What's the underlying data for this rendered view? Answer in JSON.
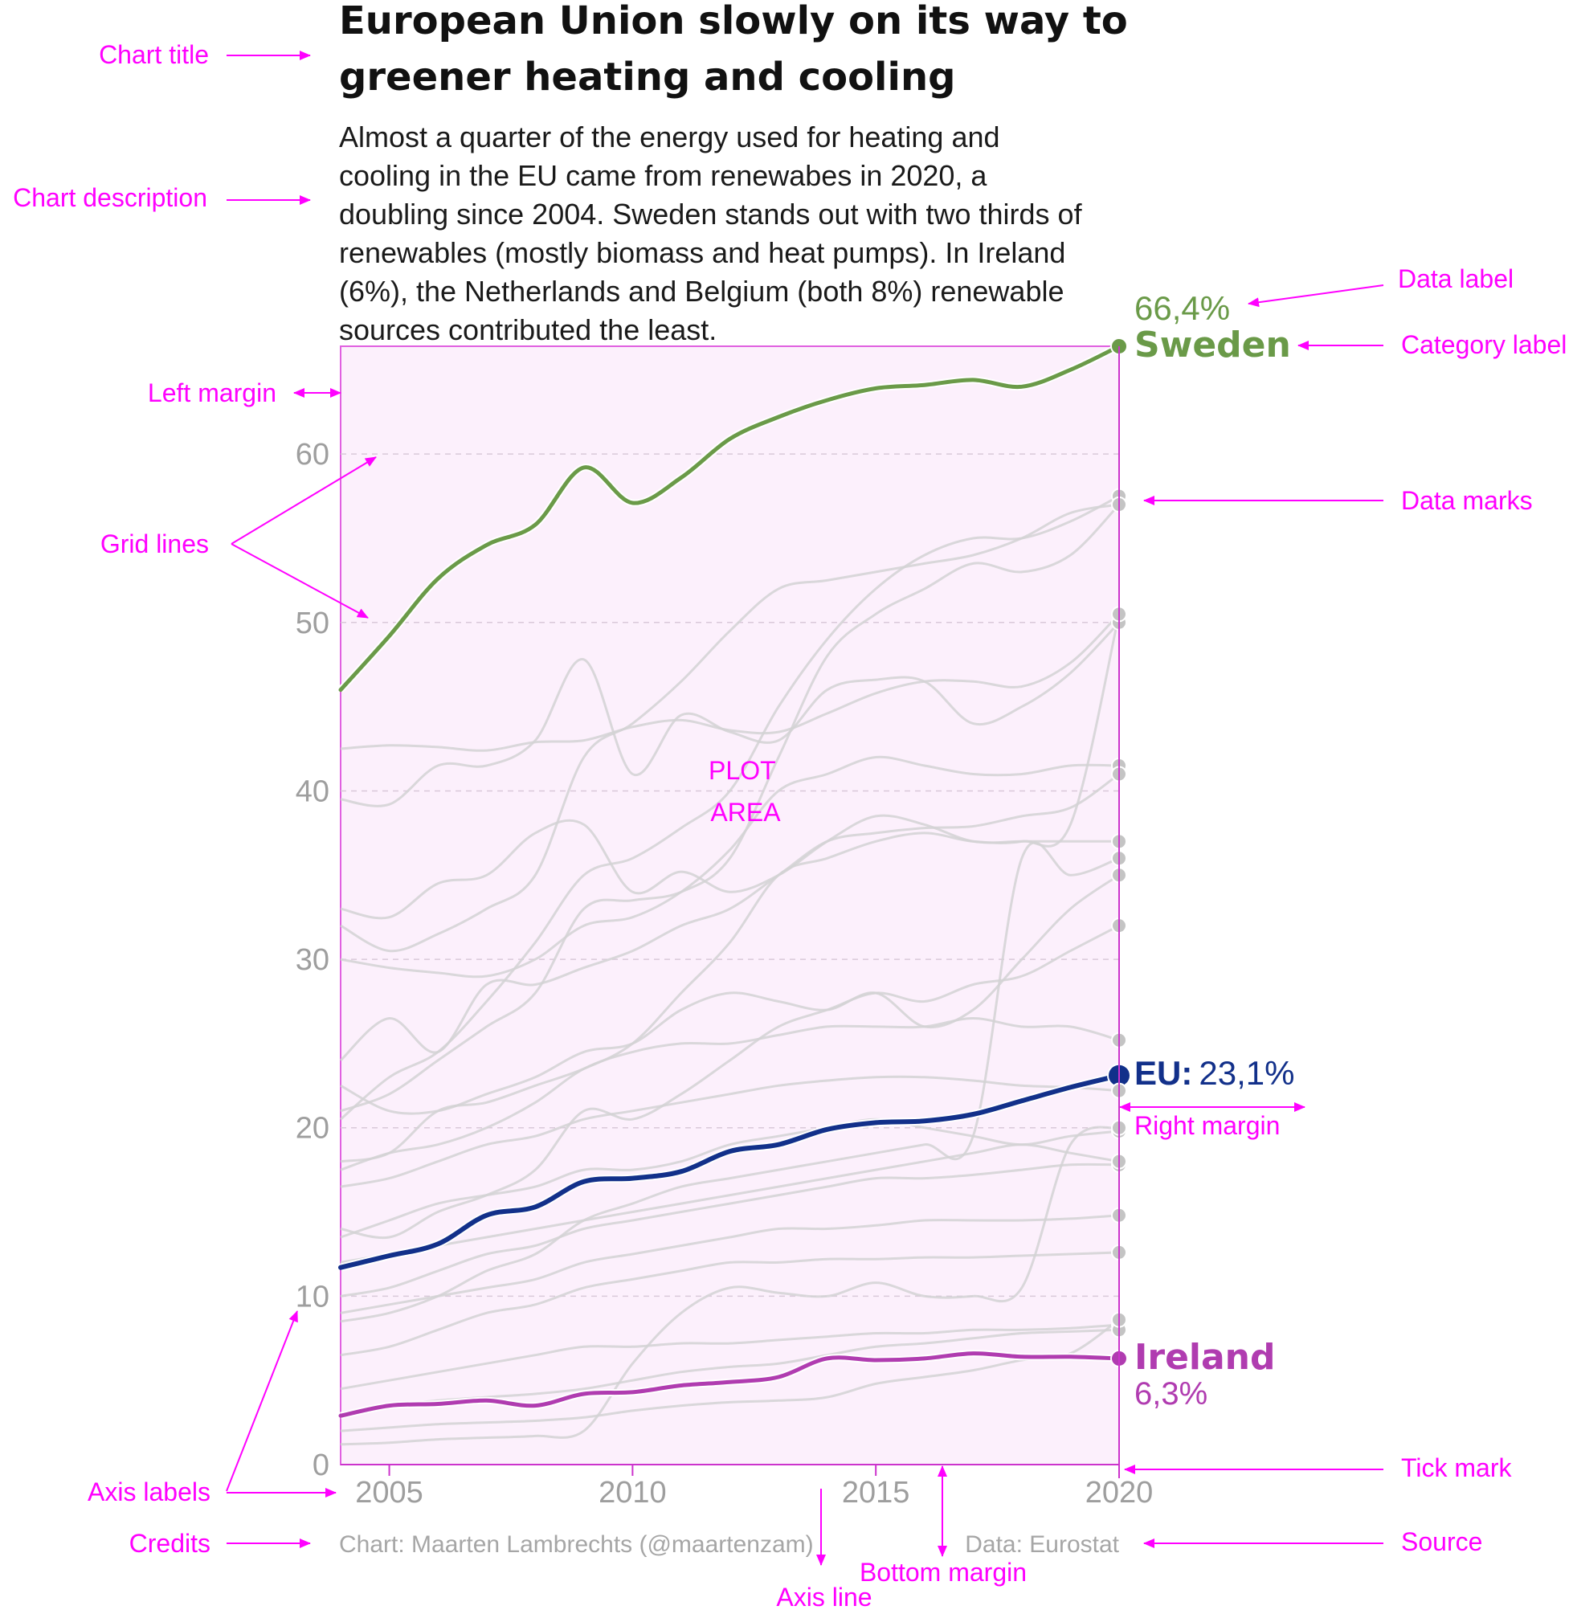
{
  "title_lines": [
    "European Union slowly on its way to",
    "greener heating and cooling"
  ],
  "description_lines": [
    "Almost a quarter of the energy used for heating and",
    "cooling in the EU came from renewabes in 2020, a",
    "doubling since 2004. Sweden stands out with two thirds of",
    "renewables (mostly biomass and heat pumps). In Ireland",
    "(6%), the Netherlands and Belgium (both 8%) renewable",
    "sources contributed the least."
  ],
  "credits": "Chart: Maarten Lambrechts (@maartenzam)",
  "source": "Data: Eurostat",
  "plot_area_label": [
    "PLOT",
    "AREA"
  ],
  "annotations": {
    "chart_title": "Chart title",
    "chart_description": "Chart description",
    "left_margin": "Left margin",
    "grid_lines": "Grid lines",
    "axis_labels": "Axis labels",
    "credits": "Credits",
    "axis_line": "Axis line",
    "bottom_margin": "Bottom margin",
    "source": "Source",
    "tick_mark": "Tick mark",
    "right_margin": "Right margin",
    "data_marks": "Data marks",
    "category_label": "Category label",
    "data_label": "Data label"
  },
  "colors": {
    "sweden": "#6a9a48",
    "eu": "#12308a",
    "ireland": "#b03cb0",
    "other_countries": "#d2d2d4",
    "annotation": "#ff00ff",
    "plot_area_bg": "#fcf0fc"
  },
  "chart_data": {
    "type": "line",
    "title": "European Union slowly on its way to greener heating and cooling",
    "xlim": [
      2004,
      2020
    ],
    "ylim": [
      0,
      66.4
    ],
    "x_ticks": [
      2005,
      2010,
      2015,
      2020
    ],
    "y_ticks": [
      0,
      10,
      20,
      30,
      40,
      50,
      60
    ],
    "grid": "horizontal dashed",
    "x": [
      2004,
      2005,
      2006,
      2007,
      2008,
      2009,
      2010,
      2011,
      2012,
      2013,
      2014,
      2015,
      2016,
      2017,
      2018,
      2019,
      2020
    ],
    "series": [
      {
        "name": "Sweden",
        "highlight": true,
        "end_label": "66,4%",
        "values": [
          46.0,
          49.2,
          52.6,
          54.6,
          55.8,
          59.2,
          57.1,
          58.6,
          60.9,
          62.2,
          63.2,
          63.9,
          64.1,
          64.4,
          64.0,
          65.0,
          66.4
        ]
      },
      {
        "name": "EU",
        "highlight": true,
        "end_label": "23,1%",
        "values": [
          11.7,
          12.4,
          13.1,
          14.8,
          15.3,
          16.8,
          17.0,
          17.4,
          18.6,
          19.0,
          19.9,
          20.3,
          20.4,
          20.8,
          21.6,
          22.4,
          23.1
        ]
      },
      {
        "name": "Ireland",
        "highlight": true,
        "end_label": "6,3%",
        "values": [
          2.9,
          3.5,
          3.6,
          3.8,
          3.5,
          4.2,
          4.3,
          4.7,
          4.9,
          5.2,
          6.3,
          6.2,
          6.3,
          6.6,
          6.4,
          6.4,
          6.3
        ]
      },
      {
        "values": [
          42.5,
          42.7,
          42.6,
          42.4,
          42.9,
          43.0,
          43.8,
          44.2,
          43.6,
          43.5,
          44.6,
          45.8,
          46.5,
          46.5,
          46.2,
          47.6,
          50.5
        ]
      },
      {
        "values": [
          39.5,
          39.2,
          41.5,
          41.5,
          43.0,
          47.8,
          41.0,
          44.5,
          43.5,
          43.0,
          46.0,
          46.6,
          46.5,
          44.0,
          45.0,
          47.0,
          50.0
        ]
      },
      {
        "values": [
          33.0,
          32.5,
          34.5,
          35.0,
          37.5,
          38.0,
          34.0,
          35.2,
          34.0,
          35.0,
          37.0,
          38.5,
          38.0,
          37.0,
          37.0,
          37.0,
          37.0
        ]
      },
      {
        "values": [
          30.0,
          29.5,
          29.2,
          29.0,
          30.0,
          32.0,
          32.5,
          34.0,
          36.5,
          40.0,
          41.0,
          42.0,
          41.5,
          41.0,
          41.0,
          41.5,
          41.5
        ]
      },
      {
        "values": [
          24.0,
          26.5,
          24.5,
          28.5,
          28.5,
          29.5,
          30.5,
          32.0,
          33.0,
          35.0,
          37.0,
          37.5,
          37.8,
          37.9,
          38.5,
          39.0,
          41.0
        ]
      },
      {
        "values": [
          20.5,
          23.0,
          24.5,
          27.5,
          31.0,
          35.0,
          36.0,
          37.8,
          40.0,
          45.0,
          49.0,
          52.0,
          54.0,
          55.0,
          55.0,
          56.0,
          57.5
        ]
      },
      {
        "values": [
          32.0,
          30.5,
          31.5,
          33.0,
          35.0,
          42.0,
          44.0,
          46.5,
          49.5,
          52.0,
          52.5,
          53.0,
          53.5,
          54.0,
          55.0,
          56.5,
          57.0
        ]
      },
      {
        "values": [
          21.0,
          22.0,
          24.0,
          26.0,
          28.0,
          33.0,
          33.5,
          34.0,
          36.0,
          42.0,
          48.0,
          50.5,
          52.0,
          53.5,
          53.0,
          54.0,
          57.0
        ]
      },
      {
        "values": [
          18.0,
          18.5,
          21.0,
          21.5,
          22.5,
          23.5,
          25.0,
          28.0,
          31.0,
          35.0,
          36.0,
          37.0,
          37.5,
          37.0,
          37.0,
          38.0,
          50.5
        ]
      },
      {
        "values": [
          22.5,
          21.0,
          21.0,
          22.0,
          23.0,
          24.5,
          25.0,
          27.0,
          28.0,
          27.5,
          27.0,
          28.0,
          26.0,
          27.0,
          30.0,
          33.0,
          35.0
        ]
      },
      {
        "values": [
          17.5,
          18.5,
          19.0,
          20.0,
          21.5,
          23.5,
          24.5,
          25.0,
          25.0,
          25.5,
          26.0,
          26.0,
          26.0,
          26.5,
          26.0,
          26.0,
          25.2
        ]
      },
      {
        "values": [
          16.5,
          17.0,
          18.0,
          19.0,
          19.5,
          20.5,
          21.0,
          21.5,
          22.0,
          22.5,
          22.8,
          23.0,
          23.0,
          22.8,
          22.5,
          22.4,
          22.2
        ]
      },
      {
        "values": [
          13.5,
          14.5,
          15.5,
          16.0,
          16.5,
          17.5,
          17.5,
          18.0,
          19.0,
          19.5,
          20.0,
          20.5,
          20.0,
          19.5,
          19.0,
          19.5,
          19.8
        ]
      },
      {
        "values": [
          10.0,
          10.5,
          11.5,
          12.5,
          13.0,
          14.0,
          14.5,
          15.0,
          15.5,
          16.0,
          16.5,
          17.0,
          17.0,
          17.2,
          17.5,
          17.8,
          17.8
        ]
      },
      {
        "values": [
          9.0,
          9.5,
          10.0,
          10.5,
          11.0,
          12.0,
          12.5,
          13.0,
          13.5,
          14.0,
          14.0,
          14.2,
          14.5,
          14.5,
          14.5,
          14.6,
          14.8
        ]
      },
      {
        "values": [
          6.5,
          7.0,
          8.0,
          9.0,
          9.5,
          10.5,
          11.0,
          11.5,
          12.0,
          12.0,
          12.2,
          12.2,
          12.3,
          12.3,
          12.4,
          12.5,
          12.6
        ]
      },
      {
        "values": [
          4.5,
          5.0,
          5.5,
          6.0,
          6.5,
          7.0,
          7.0,
          7.2,
          7.2,
          7.4,
          7.6,
          7.8,
          7.8,
          8.0,
          8.0,
          8.1,
          8.3
        ]
      },
      {
        "values": [
          3.0,
          3.5,
          3.8,
          4.0,
          4.2,
          4.5,
          5.0,
          5.5,
          5.8,
          6.0,
          6.5,
          7.0,
          7.2,
          7.5,
          7.8,
          7.9,
          8.0
        ]
      },
      {
        "values": [
          1.2,
          1.3,
          1.5,
          1.6,
          1.7,
          2.0,
          6.0,
          9.0,
          10.5,
          10.2,
          10.0,
          10.8,
          10.0,
          10.0,
          10.5,
          19.0,
          20.0
        ]
      },
      {
        "values": [
          2.0,
          2.2,
          2.4,
          2.5,
          2.6,
          2.8,
          3.2,
          3.5,
          3.7,
          3.8,
          4.0,
          4.8,
          5.2,
          5.6,
          6.2,
          6.6,
          8.6
        ]
      },
      {
        "values": [
          8.5,
          9.0,
          10.0,
          11.5,
          12.5,
          14.5,
          15.5,
          16.5,
          17.0,
          17.5,
          18.0,
          18.5,
          19.0,
          19.5,
          36.0,
          35.0,
          36.0
        ]
      },
      {
        "values": [
          12.0,
          12.5,
          13.0,
          13.5,
          14.0,
          14.5,
          15.0,
          15.5,
          16.0,
          16.5,
          17.0,
          17.5,
          18.0,
          18.5,
          19.0,
          18.5,
          18.0
        ]
      },
      {
        "values": [
          14.0,
          13.5,
          15.0,
          16.0,
          17.5,
          21.0,
          20.5,
          22.0,
          24.0,
          26.0,
          27.0,
          28.0,
          27.5,
          28.5,
          29.0,
          30.5,
          32.0
        ]
      }
    ]
  }
}
